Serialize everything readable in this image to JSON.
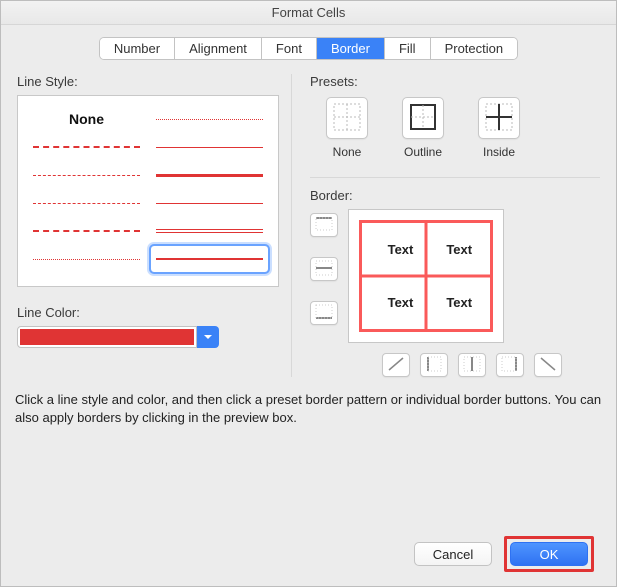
{
  "window": {
    "title": "Format Cells"
  },
  "tabs": {
    "number": "Number",
    "alignment": "Alignment",
    "font": "Font",
    "border": "Border",
    "fill": "Fill",
    "protection": "Protection",
    "active": "border"
  },
  "left_panel": {
    "line_style_label": "Line Style:",
    "none_label": "None",
    "line_color_label": "Line Color:",
    "line_color": "#e03434",
    "styles": [
      {
        "css": "border-top:1px dotted #e03434"
      },
      {
        "css": "border-top:2px dashed #e03434"
      },
      {
        "css": "border-top:1px solid #e03434"
      },
      {
        "css": "border-top:1px dashed #e03434"
      },
      {
        "css": "border-top:3px solid #e03434"
      },
      {
        "css": "border-top:1px dashed #e03434"
      },
      {
        "css": "border-top:1px solid #e03434"
      },
      {
        "css": "border-top:2px dashed #e03434"
      },
      {
        "css": "border-top:4px double #e03434"
      },
      {
        "css": "border-top:1px dotted #e03434"
      },
      {
        "css": "border-top:2px solid #e03434"
      }
    ],
    "selected_index": 10
  },
  "right_panel": {
    "presets_label": "Presets:",
    "presets": {
      "none": "None",
      "outline": "Outline",
      "inside": "Inside"
    },
    "border_label": "Border:",
    "cell_text": "Text",
    "border_color": "#fa5a5a",
    "border_width": 3
  },
  "help": {
    "text": "Click a line style and color, and then click a preset border pattern or individual border buttons. You can also apply borders by clicking in the preview box."
  },
  "footer": {
    "cancel": "Cancel",
    "ok": "OK"
  },
  "colors": {
    "window_bg": "#ececec",
    "accent": "#3a82f7",
    "highlight_red": "#e03434"
  }
}
